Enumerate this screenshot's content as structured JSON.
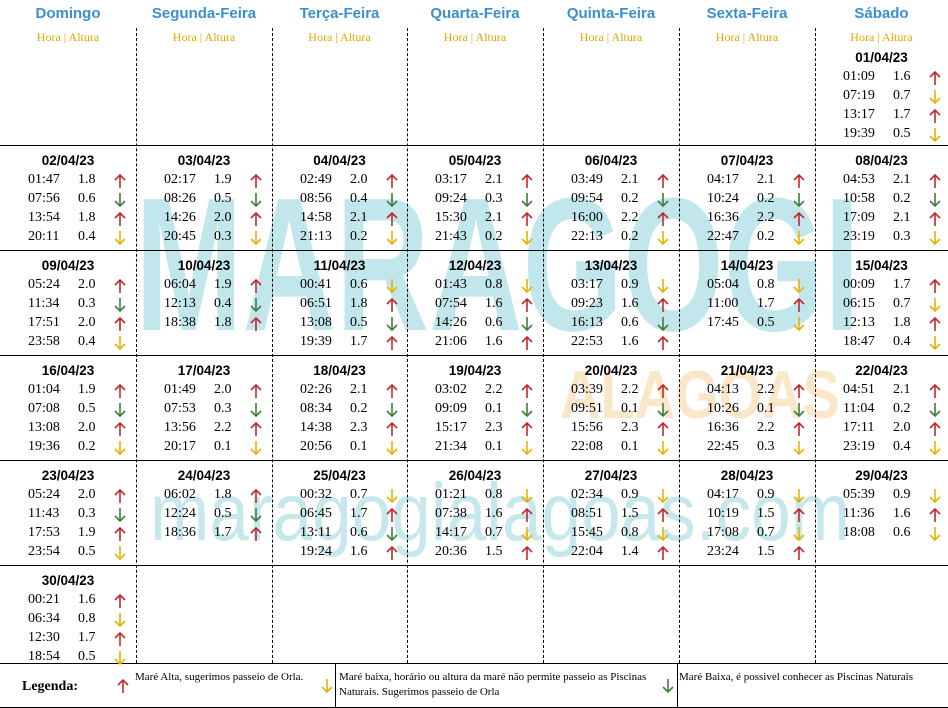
{
  "cabecalho": {
    "dias": [
      "Domingo",
      "Segunda-Feira",
      "Terça-Feira",
      "Quarta-Feira",
      "Quinta-Feira",
      "Sexta-Feira",
      "Sábado"
    ],
    "subtitulo": "Hora | Altura"
  },
  "semanas": [
    [
      null,
      null,
      null,
      null,
      null,
      null,
      {
        "data": "01/04/23",
        "mares": [
          [
            "01:09",
            "1.6",
            0
          ],
          [
            "07:19",
            "0.7",
            1
          ],
          [
            "13:17",
            "1.7",
            0
          ],
          [
            "19:39",
            "0.5",
            1
          ]
        ]
      }
    ],
    [
      {
        "data": "02/04/23",
        "mares": [
          [
            "01:47",
            "1.8",
            0
          ],
          [
            "07:56",
            "0.6",
            2
          ],
          [
            "13:54",
            "1.8",
            0
          ],
          [
            "20:11",
            "0.4",
            1
          ]
        ]
      },
      {
        "data": "03/04/23",
        "mares": [
          [
            "02:17",
            "1.9",
            0
          ],
          [
            "08:26",
            "0.5",
            2
          ],
          [
            "14:26",
            "2.0",
            0
          ],
          [
            "20:45",
            "0.3",
            1
          ]
        ]
      },
      {
        "data": "04/04/23",
        "mares": [
          [
            "02:49",
            "2.0",
            0
          ],
          [
            "08:56",
            "0.4",
            2
          ],
          [
            "14:58",
            "2.1",
            0
          ],
          [
            "21:13",
            "0.2",
            1
          ]
        ]
      },
      {
        "data": "05/04/23",
        "mares": [
          [
            "03:17",
            "2.1",
            0
          ],
          [
            "09:24",
            "0.3",
            2
          ],
          [
            "15:30",
            "2.1",
            0
          ],
          [
            "21:43",
            "0.2",
            1
          ]
        ]
      },
      {
        "data": "06/04/23",
        "mares": [
          [
            "03:49",
            "2.1",
            0
          ],
          [
            "09:54",
            "0.2",
            2
          ],
          [
            "16:00",
            "2.2",
            0
          ],
          [
            "22:13",
            "0.2",
            1
          ]
        ]
      },
      {
        "data": "07/04/23",
        "mares": [
          [
            "04:17",
            "2.1",
            0
          ],
          [
            "10:24",
            "0.2",
            2
          ],
          [
            "16:36",
            "2.2",
            0
          ],
          [
            "22:47",
            "0.2",
            1
          ]
        ]
      },
      {
        "data": "08/04/23",
        "mares": [
          [
            "04:53",
            "2.1",
            0
          ],
          [
            "10:58",
            "0.2",
            2
          ],
          [
            "17:09",
            "2.1",
            0
          ],
          [
            "23:19",
            "0.3",
            1
          ]
        ]
      }
    ],
    [
      {
        "data": "09/04/23",
        "mares": [
          [
            "05:24",
            "2.0",
            0
          ],
          [
            "11:34",
            "0.3",
            2
          ],
          [
            "17:51",
            "2.0",
            0
          ],
          [
            "23:58",
            "0.4",
            1
          ]
        ]
      },
      {
        "data": "10/04/23",
        "mares": [
          [
            "06:04",
            "1.9",
            0
          ],
          [
            "12:13",
            "0.4",
            2
          ],
          [
            "18:38",
            "1.8",
            0
          ]
        ]
      },
      {
        "data": "11/04/23",
        "mares": [
          [
            "00:41",
            "0.6",
            1
          ],
          [
            "06:51",
            "1.8",
            0
          ],
          [
            "13:08",
            "0.5",
            2
          ],
          [
            "19:39",
            "1.7",
            0
          ]
        ]
      },
      {
        "data": "12/04/23",
        "mares": [
          [
            "01:43",
            "0.8",
            1
          ],
          [
            "07:54",
            "1.6",
            0
          ],
          [
            "14:26",
            "0.6",
            2
          ],
          [
            "21:06",
            "1.6",
            0
          ]
        ]
      },
      {
        "data": "13/04/23",
        "mares": [
          [
            "03:17",
            "0.9",
            1
          ],
          [
            "09:23",
            "1.6",
            0
          ],
          [
            "16:13",
            "0.6",
            2
          ],
          [
            "22:53",
            "1.6",
            0
          ]
        ]
      },
      {
        "data": "14/04/23",
        "mares": [
          [
            "05:04",
            "0.8",
            1
          ],
          [
            "11:00",
            "1.7",
            0
          ],
          [
            "17:45",
            "0.5",
            1
          ]
        ]
      },
      {
        "data": "15/04/23",
        "mares": [
          [
            "00:09",
            "1.7",
            0
          ],
          [
            "06:15",
            "0.7",
            1
          ],
          [
            "12:13",
            "1.8",
            0
          ],
          [
            "18:47",
            "0.4",
            1
          ]
        ]
      }
    ],
    [
      {
        "data": "16/04/23",
        "mares": [
          [
            "01:04",
            "1.9",
            0
          ],
          [
            "07:08",
            "0.5",
            2
          ],
          [
            "13:08",
            "2.0",
            0
          ],
          [
            "19:36",
            "0.2",
            1
          ]
        ]
      },
      {
        "data": "17/04/23",
        "mares": [
          [
            "01:49",
            "2.0",
            0
          ],
          [
            "07:53",
            "0.3",
            2
          ],
          [
            "13:56",
            "2.2",
            0
          ],
          [
            "20:17",
            "0.1",
            1
          ]
        ]
      },
      {
        "data": "18/04/23",
        "mares": [
          [
            "02:26",
            "2.1",
            0
          ],
          [
            "08:34",
            "0.2",
            2
          ],
          [
            "14:38",
            "2.3",
            0
          ],
          [
            "20:56",
            "0.1",
            1
          ]
        ]
      },
      {
        "data": "19/04/23",
        "mares": [
          [
            "03:02",
            "2.2",
            0
          ],
          [
            "09:09",
            "0.1",
            2
          ],
          [
            "15:17",
            "2.3",
            0
          ],
          [
            "21:34",
            "0.1",
            1
          ]
        ]
      },
      {
        "data": "20/04/23",
        "mares": [
          [
            "03:39",
            "2.2",
            0
          ],
          [
            "09:51",
            "0.1",
            2
          ],
          [
            "15:56",
            "2.3",
            0
          ],
          [
            "22:08",
            "0.1",
            1
          ]
        ]
      },
      {
        "data": "21/04/23",
        "mares": [
          [
            "04:13",
            "2.2",
            0
          ],
          [
            "10:26",
            "0.1",
            2
          ],
          [
            "16:36",
            "2.2",
            0
          ],
          [
            "22:45",
            "0.3",
            1
          ]
        ]
      },
      {
        "data": "22/04/23",
        "mares": [
          [
            "04:51",
            "2.1",
            0
          ],
          [
            "11:04",
            "0.2",
            2
          ],
          [
            "17:11",
            "2.0",
            0
          ],
          [
            "23:19",
            "0.4",
            1
          ]
        ]
      }
    ],
    [
      {
        "data": "23/04/23",
        "mares": [
          [
            "05:24",
            "2.0",
            0
          ],
          [
            "11:43",
            "0.3",
            2
          ],
          [
            "17:53",
            "1.9",
            0
          ],
          [
            "23:54",
            "0.5",
            1
          ]
        ]
      },
      {
        "data": "24/04/23",
        "mares": [
          [
            "06:02",
            "1.8",
            0
          ],
          [
            "12:24",
            "0.5",
            2
          ],
          [
            "18:36",
            "1.7",
            0
          ]
        ]
      },
      {
        "data": "25/04/23",
        "mares": [
          [
            "00:32",
            "0.7",
            1
          ],
          [
            "06:45",
            "1.7",
            0
          ],
          [
            "13:11",
            "0.6",
            2
          ],
          [
            "19:24",
            "1.6",
            0
          ]
        ]
      },
      {
        "data": "26/04/23",
        "mares": [
          [
            "01:21",
            "0.8",
            1
          ],
          [
            "07:38",
            "1.6",
            0
          ],
          [
            "14:17",
            "0.7",
            1
          ],
          [
            "20:36",
            "1.5",
            0
          ]
        ]
      },
      {
        "data": "27/04/23",
        "mares": [
          [
            "02:34",
            "0.9",
            1
          ],
          [
            "08:51",
            "1.5",
            0
          ],
          [
            "15:45",
            "0.8",
            1
          ],
          [
            "22:04",
            "1.4",
            0
          ]
        ]
      },
      {
        "data": "28/04/23",
        "mares": [
          [
            "04:17",
            "0.9",
            1
          ],
          [
            "10:19",
            "1.5",
            0
          ],
          [
            "17:08",
            "0.7",
            1
          ],
          [
            "23:24",
            "1.5",
            0
          ]
        ]
      },
      {
        "data": "29/04/23",
        "mares": [
          [
            "05:39",
            "0.9",
            1
          ],
          [
            "11:36",
            "1.6",
            0
          ],
          [
            "18:08",
            "0.6",
            1
          ]
        ]
      }
    ],
    [
      {
        "data": "30/04/23",
        "mares": [
          [
            "00:21",
            "1.6",
            0
          ],
          [
            "06:34",
            "0.8",
            1
          ],
          [
            "12:30",
            "1.7",
            0
          ],
          [
            "18:54",
            "0.5",
            1
          ]
        ]
      },
      null,
      null,
      null,
      null,
      null,
      null
    ]
  ],
  "legenda": {
    "titulo": "Legenda:",
    "itens": [
      "Maré Alta, sugerimos passeio de Orla.",
      "Maré baixa, horário ou altura da maré não permite passeio as Piscinas Naturais. Sugerimos passeio de Orla",
      "Maré Baixa, é possivel conhecer as Piscinas Naturais"
    ]
  },
  "marca_dagua": [
    "MARAGOGI",
    "ALAGOAS",
    "maragogialagoas.com"
  ]
}
